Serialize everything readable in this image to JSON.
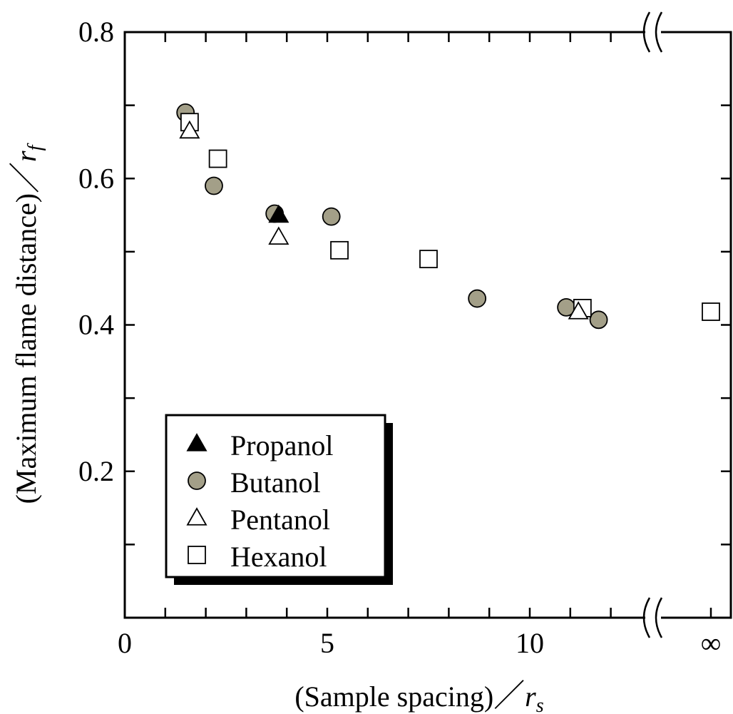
{
  "chart_data": {
    "type": "scatter",
    "xlabel": "(Sample spacing)",
    "xlabel_symbol": "r",
    "xlabel_subscript": "s",
    "ylabel": "(Maximum flame distance)",
    "ylabel_symbol": "r",
    "ylabel_subscript": "f",
    "xlim": [
      0,
      14.5
    ],
    "ylim": [
      0,
      0.8
    ],
    "x_ticks": [
      {
        "value": 0,
        "label": "0"
      },
      {
        "value": 5,
        "label": "5"
      },
      {
        "value": 10,
        "label": "10"
      }
    ],
    "x_infinity_label": "∞",
    "y_ticks": [
      {
        "value": 0.2,
        "label": "0.2"
      },
      {
        "value": 0.4,
        "label": "0.4"
      },
      {
        "value": 0.6,
        "label": "0.6"
      },
      {
        "value": 0.8,
        "label": "0.8"
      }
    ],
    "axis_break": true,
    "grid": false,
    "legend_position": "bottom-left",
    "series": [
      {
        "name": "Propanol",
        "marker": "filled-triangle",
        "color": "#000000",
        "points": [
          {
            "x": 3.8,
            "y": 0.55
          }
        ]
      },
      {
        "name": "Butanol",
        "marker": "filled-circle",
        "color": "#a39f88",
        "points": [
          {
            "x": 1.5,
            "y": 0.69
          },
          {
            "x": 2.2,
            "y": 0.59
          },
          {
            "x": 3.7,
            "y": 0.552
          },
          {
            "x": 5.1,
            "y": 0.548
          },
          {
            "x": 8.7,
            "y": 0.436
          },
          {
            "x": 10.9,
            "y": 0.424
          },
          {
            "x": 11.7,
            "y": 0.407
          }
        ]
      },
      {
        "name": "Pentanol",
        "marker": "open-triangle",
        "color": "#ffffff",
        "points": [
          {
            "x": 1.6,
            "y": 0.665
          },
          {
            "x": 3.8,
            "y": 0.52
          },
          {
            "x": 11.2,
            "y": 0.418
          }
        ]
      },
      {
        "name": "Hexanol",
        "marker": "open-square",
        "color": "#ffffff",
        "points": [
          {
            "x": 1.6,
            "y": 0.677
          },
          {
            "x": 2.3,
            "y": 0.627
          },
          {
            "x": 5.3,
            "y": 0.502
          },
          {
            "x": 7.5,
            "y": 0.49
          },
          {
            "x": 11.3,
            "y": 0.423
          },
          {
            "x": "infinity",
            "y": 0.418
          }
        ]
      }
    ]
  }
}
